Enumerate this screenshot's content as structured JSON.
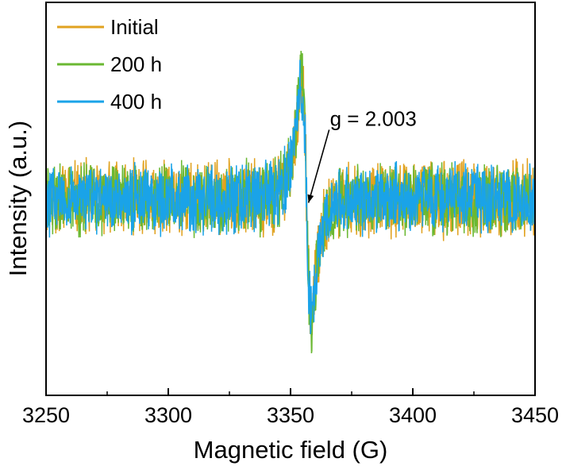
{
  "chart_data": {
    "type": "line",
    "title": "",
    "xlabel": "Magnetic field (G)",
    "ylabel": "Intensity (a.u.)",
    "xlim": [
      3250,
      3450
    ],
    "ylim": [
      -1.0,
      1.0
    ],
    "xticks": [
      "3250",
      "3300",
      "3350",
      "3400",
      "3450"
    ],
    "x_minor_ticks": [
      3275,
      3325,
      3375,
      3425
    ],
    "y_tick_labels": false,
    "grid": false,
    "legend_position": "top-left",
    "resonance": {
      "center": 3356.5,
      "peak_x": 3354.5,
      "trough_x": 3358.5,
      "max": 0.62,
      "min": -0.62
    },
    "series": [
      {
        "name": "Initial",
        "color": "#E1A21F",
        "noise_amplitude": 0.22,
        "signal_scale": 0.97,
        "seed": 11
      },
      {
        "name": "200 h",
        "color": "#6AB832",
        "noise_amplitude": 0.21,
        "signal_scale": 1.0,
        "seed": 29
      },
      {
        "name": "400 h",
        "color": "#1AA3E8",
        "noise_amplitude": 0.2,
        "signal_scale": 0.95,
        "seed": 47
      }
    ],
    "annotations": [
      {
        "text": "g = 2.003",
        "x": 3358,
        "y": -0.02
      }
    ]
  }
}
